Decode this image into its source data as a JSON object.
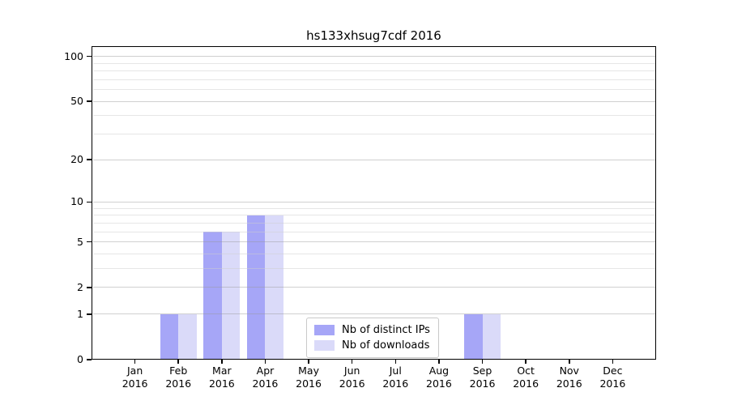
{
  "chart_data": {
    "type": "bar",
    "title": "hs133xhsug7cdf 2016",
    "categories": [
      "Jan",
      "Feb",
      "Mar",
      "Apr",
      "May",
      "Jun",
      "Jul",
      "Aug",
      "Sep",
      "Oct",
      "Nov",
      "Dec"
    ],
    "category_year": "2016",
    "series": [
      {
        "name": "Nb of distinct IPs",
        "color": "#a6a6f7",
        "values": [
          0,
          1,
          6,
          8,
          0,
          0,
          0,
          0,
          1,
          0,
          0,
          0
        ]
      },
      {
        "name": "Nb of downloads",
        "color": "#dadaf9",
        "values": [
          0,
          1,
          6,
          8,
          0,
          0,
          0,
          0,
          1,
          0,
          0,
          0
        ]
      }
    ],
    "y_axis": {
      "scale": "log10(1+x)",
      "major_ticks": [
        0,
        1,
        2,
        5,
        10,
        20,
        50,
        100
      ],
      "minor_gridlines": [
        3,
        4,
        6,
        7,
        8,
        9,
        30,
        40,
        60,
        70,
        80,
        90
      ],
      "min": 0,
      "max": 117
    },
    "grid": true,
    "legend": {
      "position": "lower-center"
    }
  },
  "colors": {
    "background": "#ffffff",
    "spine": "#000000",
    "major_grid": "rgba(150,150,150,0.45)",
    "minor_grid": "rgba(205,205,205,0.5)",
    "text": "#000000",
    "legend_border": "#c9c9c9",
    "legend_bg": "#ffffff"
  }
}
